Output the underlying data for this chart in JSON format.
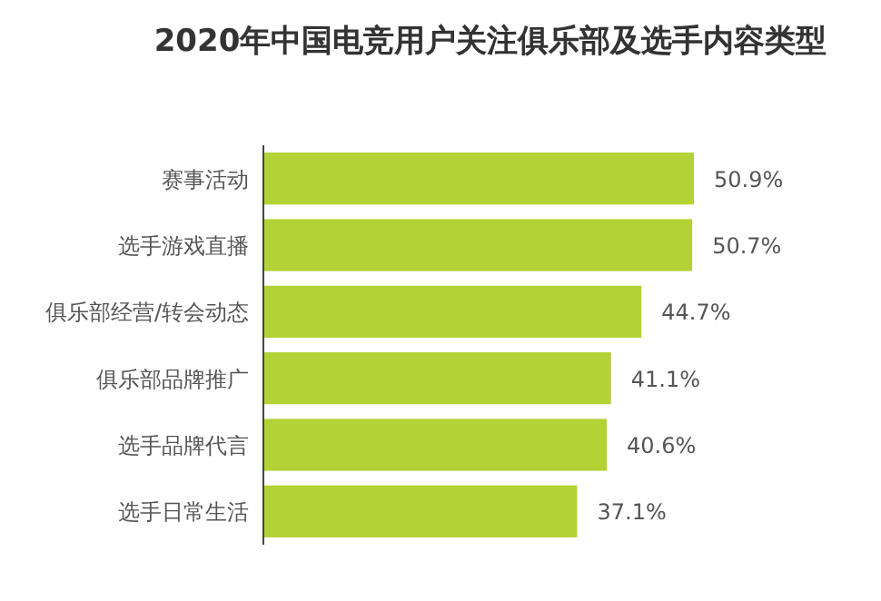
{
  "chart_data": {
    "type": "bar",
    "orientation": "horizontal",
    "title": "2020年中国电竞用户关注俱乐部及选手内容类型",
    "categories": [
      "赛事活动",
      "选手游戏直播",
      "俱乐部经营/转会动态",
      "俱乐部品牌推广",
      "选手品牌代言",
      "选手日常生活"
    ],
    "values": [
      50.9,
      50.7,
      44.7,
      41.1,
      40.6,
      37.1
    ],
    "value_labels": [
      "50.9%",
      "50.7%",
      "44.7%",
      "41.1%",
      "40.6%",
      "37.1%"
    ],
    "color": "#b2d235"
  }
}
